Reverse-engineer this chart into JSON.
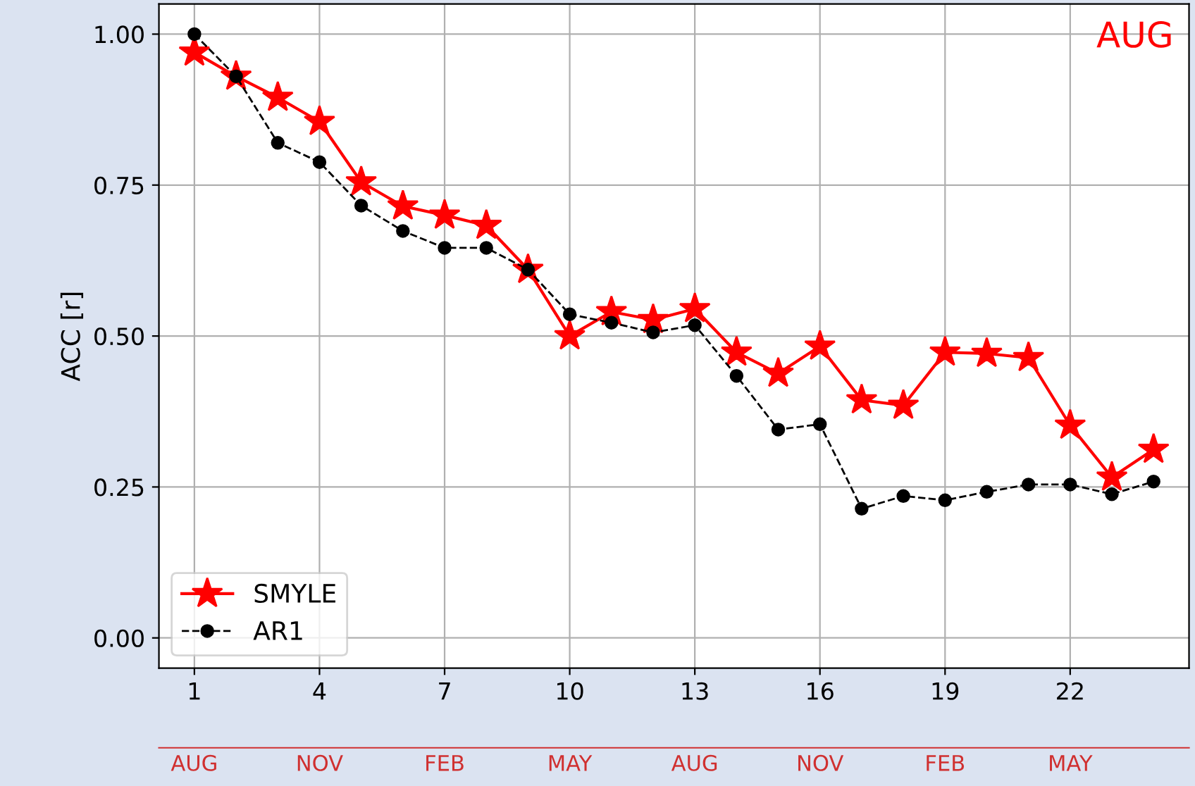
{
  "chart_data": {
    "type": "line",
    "ylabel": "ACC [r]",
    "annotations": [
      "AUG",
      "AUG",
      "NOV",
      "FEB",
      "MAY",
      "AUG",
      "NOV",
      "FEB",
      "MAY"
    ],
    "x": [
      1,
      2,
      3,
      4,
      5,
      6,
      7,
      8,
      9,
      10,
      11,
      12,
      13,
      14,
      15,
      16,
      17,
      18,
      19,
      20,
      21,
      22,
      23,
      24
    ],
    "series": [
      {
        "name": "SMYLE",
        "color": "#ff0000",
        "marker": "star",
        "line_style": "solid",
        "values": [
          0.97,
          0.93,
          0.895,
          0.855,
          0.755,
          0.715,
          0.7,
          0.683,
          0.61,
          0.5,
          0.54,
          0.527,
          0.545,
          0.473,
          0.438,
          0.483,
          0.394,
          0.385,
          0.473,
          0.471,
          0.464,
          0.352,
          0.266,
          0.312
        ]
      },
      {
        "name": "AR1",
        "color": "#000000",
        "marker": "circle",
        "line_style": "dashed",
        "values": [
          1.0,
          0.93,
          0.82,
          0.788,
          0.716,
          0.674,
          0.646,
          0.646,
          0.61,
          0.536,
          0.522,
          0.506,
          0.518,
          0.434,
          0.345,
          0.354,
          0.214,
          0.235,
          0.228,
          0.242,
          0.254,
          0.254,
          0.238,
          0.259
        ]
      }
    ],
    "xlim": [
      0.15,
      24.85
    ],
    "xticks": [
      1,
      4,
      7,
      10,
      13,
      16,
      19,
      22
    ],
    "ylim": [
      -0.05,
      1.05
    ],
    "yticks": [
      {
        "value": 0,
        "label": "0.00"
      },
      {
        "value": 0.25,
        "label": "0.25"
      },
      {
        "value": 0.5,
        "label": "0.50"
      },
      {
        "value": 0.75,
        "label": "0.75"
      },
      {
        "value": 1,
        "label": "1.00"
      }
    ],
    "grid": true,
    "legend": "bottom left"
  }
}
